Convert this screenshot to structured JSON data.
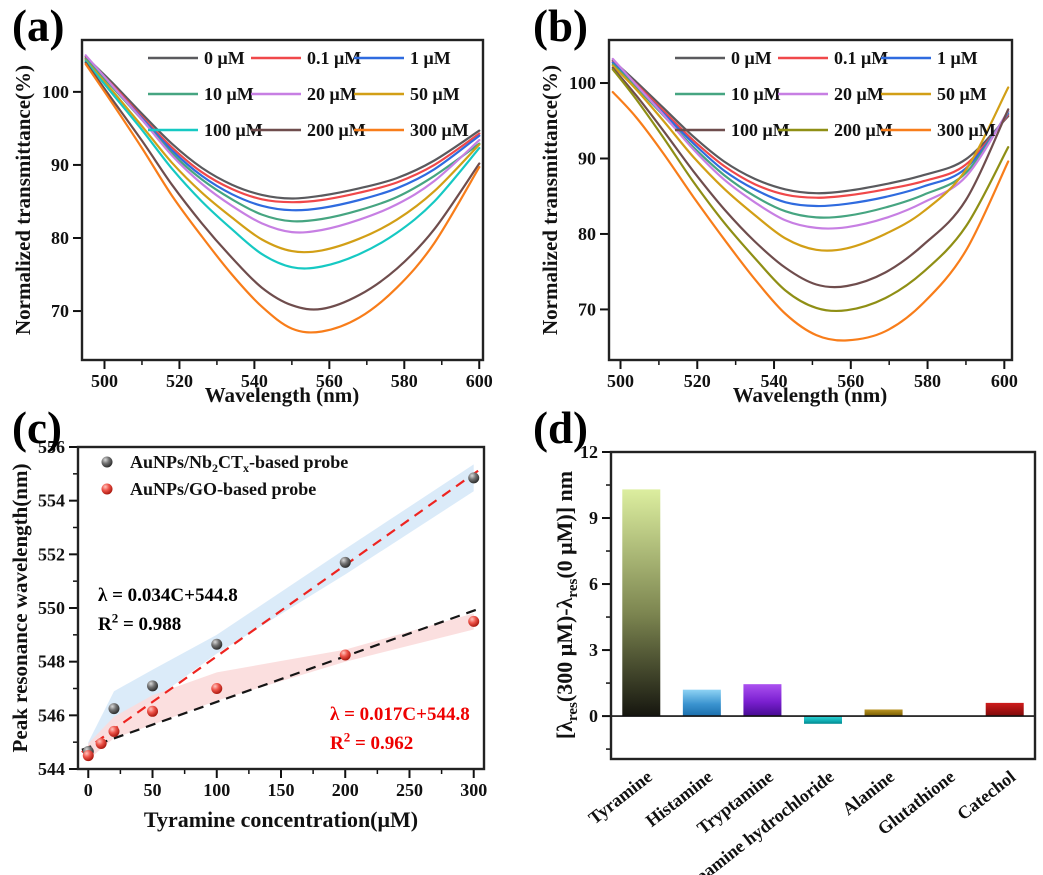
{
  "figure": {
    "background": "#ffffff"
  },
  "panels": {
    "a": {
      "letter": "(a)"
    },
    "b": {
      "letter": "(b)"
    },
    "c": {
      "letter": "(c)"
    },
    "d": {
      "letter": "(d)"
    }
  },
  "chart_data": [
    {
      "panel": "a",
      "type": "line",
      "xlabel": "Wavelength (nm)",
      "ylabel": "Normalized transmittance(%)",
      "xlim": [
        494,
        601
      ],
      "ylim": [
        63.3,
        107.1
      ],
      "xticks": [
        500,
        520,
        540,
        560,
        580,
        600
      ],
      "xminor": [
        510,
        530,
        550,
        570,
        590
      ],
      "yticks": [
        70,
        80,
        90,
        100
      ],
      "yminor": [],
      "x": [
        495,
        502,
        510,
        518,
        526,
        534,
        542,
        550,
        558,
        568,
        578,
        588,
        600
      ],
      "series": [
        {
          "name": "0 μM",
          "color": "#5a5a5e",
          "values": [
            104.8,
            101.3,
            97.0,
            92.9,
            89.6,
            87.3,
            85.9,
            85.4,
            85.8,
            86.8,
            88.2,
            90.6,
            94.7
          ]
        },
        {
          "name": "0.1 μM",
          "color": "#f0484a",
          "values": [
            104.6,
            101.0,
            96.6,
            92.4,
            89.0,
            86.7,
            85.3,
            84.9,
            85.2,
            86.2,
            87.6,
            90.0,
            94.3
          ]
        },
        {
          "name": "1 μM",
          "color": "#2f6bdf",
          "values": [
            104.5,
            100.8,
            96.4,
            92.0,
            88.5,
            86.0,
            84.4,
            83.8,
            84.1,
            85.2,
            86.8,
            89.4,
            94.0
          ]
        },
        {
          "name": "10 μM",
          "color": "#46a581",
          "values": [
            104.5,
            100.7,
            96.2,
            91.6,
            88.0,
            85.3,
            83.2,
            82.3,
            82.6,
            83.8,
            85.6,
            88.5,
            92.9
          ]
        },
        {
          "name": "20 μM",
          "color": "#c77fe3",
          "values": [
            105.0,
            100.9,
            96.2,
            91.3,
            87.4,
            84.4,
            82.0,
            80.8,
            81.1,
            82.5,
            84.6,
            87.8,
            93.4
          ]
        },
        {
          "name": "50 μM",
          "color": "#d29f16",
          "values": [
            104.3,
            100.2,
            95.3,
            90.3,
            86.2,
            82.8,
            79.8,
            78.2,
            78.3,
            79.9,
            82.5,
            86.4,
            92.8
          ]
        },
        {
          "name": "100 μM",
          "color": "#16c9c3",
          "values": [
            104.2,
            99.8,
            94.8,
            89.5,
            85.0,
            81.2,
            77.8,
            76.0,
            76.1,
            77.8,
            80.7,
            85.0,
            92.3
          ]
        },
        {
          "name": "200 μM",
          "color": "#6f4d4d",
          "values": [
            104.0,
            99.0,
            93.3,
            87.3,
            82.0,
            77.3,
            73.2,
            70.8,
            70.3,
            72.2,
            75.8,
            81.2,
            90.2
          ]
        },
        {
          "name": "300 μM",
          "color": "#f87d1a",
          "values": [
            103.8,
            98.5,
            92.3,
            85.8,
            80.2,
            75.0,
            70.6,
            67.6,
            67.2,
            69.1,
            73.2,
            79.3,
            89.7
          ]
        }
      ]
    },
    {
      "panel": "b",
      "type": "line",
      "xlabel": "Wavelength (nm)",
      "ylabel": "Normalized transmittance(%)",
      "xlim": [
        497,
        602
      ],
      "ylim": [
        63.3,
        105.7
      ],
      "xticks": [
        500,
        520,
        540,
        560,
        580,
        600
      ],
      "xminor": [
        510,
        530,
        550,
        570,
        590
      ],
      "yticks": [
        70,
        80,
        90,
        100
      ],
      "yminor": [],
      "x": [
        498,
        504,
        511,
        519,
        527,
        535,
        543,
        551,
        559,
        569,
        579,
        590,
        601
      ],
      "series": [
        {
          "name": "0 μM",
          "color": "#5a5a5e",
          "values": [
            103.0,
            100.2,
            96.8,
            92.9,
            89.6,
            87.3,
            85.9,
            85.4,
            85.7,
            86.6,
            87.8,
            89.9,
            95.6
          ]
        },
        {
          "name": "0.1 μM",
          "color": "#f0484a",
          "values": [
            102.8,
            99.9,
            96.4,
            92.4,
            89.0,
            86.6,
            85.2,
            84.8,
            85.1,
            85.9,
            87.0,
            89.2,
            95.8
          ]
        },
        {
          "name": "1 μM",
          "color": "#2f6bdf",
          "values": [
            102.7,
            99.7,
            96.1,
            92.0,
            88.4,
            85.9,
            84.2,
            83.7,
            84.0,
            84.9,
            86.3,
            88.7,
            96.0
          ]
        },
        {
          "name": "10 μM",
          "color": "#46a581",
          "values": [
            102.5,
            99.5,
            95.8,
            91.5,
            87.8,
            85.0,
            83.0,
            82.2,
            82.4,
            83.5,
            85.2,
            88.1,
            96.2
          ]
        },
        {
          "name": "20 μM",
          "color": "#c77fe3",
          "values": [
            103.2,
            99.8,
            95.9,
            91.2,
            87.2,
            84.2,
            81.8,
            80.8,
            80.9,
            82.1,
            84.2,
            87.6,
            96.3
          ]
        },
        {
          "name": "50 μM",
          "color": "#d29f16",
          "values": [
            102.3,
            99.2,
            95.1,
            90.2,
            86.0,
            82.5,
            79.4,
            77.9,
            78.1,
            80.0,
            83.0,
            88.5,
            99.4
          ]
        },
        {
          "name": "100 μM",
          "color": "#6f4d4d",
          "values": [
            102.0,
            98.4,
            93.8,
            88.3,
            83.3,
            79.0,
            75.5,
            73.3,
            73.1,
            74.9,
            78.6,
            84.5,
            96.5
          ]
        },
        {
          "name": "200 μM",
          "color": "#8f8f15",
          "values": [
            101.8,
            97.9,
            92.9,
            86.9,
            81.5,
            76.8,
            72.5,
            70.2,
            69.9,
            71.5,
            75.0,
            81.0,
            91.5
          ]
        },
        {
          "name": "300 μM",
          "color": "#f87d1a",
          "values": [
            98.8,
            95.5,
            90.8,
            84.9,
            79.3,
            74.0,
            69.4,
            66.6,
            65.9,
            67.1,
            70.9,
            77.8,
            89.6
          ]
        }
      ]
    },
    {
      "panel": "c",
      "type": "scatter",
      "xlabel": "Tyramine concentration(μM)",
      "ylabel": "Peak resonance wavelength(nm)",
      "xlim": [
        -8,
        308
      ],
      "ylim": [
        544,
        556
      ],
      "xticks": [
        0,
        50,
        100,
        150,
        200,
        250,
        300
      ],
      "xminor": [
        25,
        75,
        125,
        175,
        225,
        275
      ],
      "yticks": [
        544,
        546,
        548,
        550,
        552,
        554,
        556
      ],
      "yminor": [
        545,
        547,
        549,
        551,
        553,
        555
      ],
      "series": [
        {
          "name": "AuNPs/Nb2CTx-based probe",
          "name_parts": [
            {
              "t": "AuNPs/Nb"
            },
            {
              "t": "2",
              "sub": true
            },
            {
              "t": "CT"
            },
            {
              "t": "x",
              "sub": true
            },
            {
              "t": "-based probe"
            }
          ],
          "marker_color": "#4d4d4d",
          "points": [
            [
              0,
              544.65
            ],
            [
              20,
              546.25
            ],
            [
              50,
              547.1
            ],
            [
              100,
              548.65
            ],
            [
              200,
              551.7
            ],
            [
              300,
              554.85
            ]
          ],
          "band": {
            "color": "#d7e9f8",
            "upper": [
              [
                0,
                545.0
              ],
              [
                20,
                546.9
              ],
              [
                50,
                547.7
              ],
              [
                100,
                549.0
              ],
              [
                200,
                552.2
              ],
              [
                300,
                555.35
              ]
            ],
            "lower": [
              [
                0,
                544.45
              ],
              [
                20,
                545.65
              ],
              [
                50,
                546.55
              ],
              [
                100,
                548.3
              ],
              [
                200,
                551.25
              ],
              [
                300,
                554.35
              ]
            ]
          },
          "fit": {
            "slope": 0.034,
            "intercept": 544.8,
            "line_color": "#ee2420",
            "eq_parts": [
              {
                "t": "λ = 0.034C+544.8"
              }
            ],
            "r2_parts": [
              {
                "t": "R"
              },
              {
                "t": "2",
                "sup": true
              },
              {
                "t": " = 0.988"
              }
            ],
            "text_color": "#000000"
          }
        },
        {
          "name": "AuNPs/GO-based probe",
          "name_parts": [
            {
              "t": "AuNPs/GO-based probe"
            }
          ],
          "marker_color": "#e8433c",
          "points": [
            [
              0,
              544.5
            ],
            [
              10,
              544.95
            ],
            [
              20,
              545.4
            ],
            [
              50,
              546.15
            ],
            [
              100,
              547.0
            ],
            [
              200,
              548.25
            ],
            [
              300,
              549.5
            ]
          ],
          "band": {
            "color": "#fbdcdc",
            "upper": [
              [
                0,
                544.95
              ],
              [
                20,
                545.95
              ],
              [
                50,
                546.75
              ],
              [
                100,
                547.6
              ],
              [
                200,
                548.45
              ],
              [
                300,
                549.8
              ]
            ],
            "lower": [
              [
                0,
                544.35
              ],
              [
                20,
                545.15
              ],
              [
                50,
                545.65
              ],
              [
                100,
                546.55
              ],
              [
                200,
                548.0
              ],
              [
                300,
                549.2
              ]
            ]
          },
          "fit": {
            "slope": 0.017,
            "intercept": 544.8,
            "line_color": "#151515",
            "eq_parts": [
              {
                "t": "λ = 0.017C+544.8"
              }
            ],
            "r2_parts": [
              {
                "t": "R"
              },
              {
                "t": "2",
                "sup": true
              },
              {
                "t": " = 0.962"
              }
            ],
            "text_color": "#ee0000"
          }
        }
      ]
    },
    {
      "panel": "d",
      "type": "bar",
      "ylabel": "[λres(300 μM)-λres(0 μM)] nm",
      "ylabel_parts": [
        {
          "t": "[λ"
        },
        {
          "t": "res",
          "sub": true
        },
        {
          "t": "(300 μM)-λ"
        },
        {
          "t": "res",
          "sub": true
        },
        {
          "t": "(0 μM)] nm"
        }
      ],
      "categories": [
        "Tyramine",
        "Histamine",
        "Tryptamine",
        "Dopamine hydrochloride",
        "Alanine",
        "Glutathione",
        "Catechol"
      ],
      "values": [
        10.3,
        1.2,
        1.45,
        -0.35,
        0.3,
        0,
        0.6
      ],
      "ylim": [
        -1.95,
        12
      ],
      "yticks": [
        0,
        3,
        6,
        9,
        12
      ],
      "yminor": [
        -1.5,
        1.5,
        4.5,
        7.5,
        10.5
      ],
      "bar_gradients": [
        [
          "#dcee9f",
          "#7c8550",
          "#16160f"
        ],
        [
          "#8ed3f4",
          "#3a93cf",
          "#1b6fad"
        ],
        [
          "#ab51f0",
          "#7a1fd0",
          "#470c93"
        ],
        [
          "#2fd6d6",
          "#14b2b8",
          "#00898f"
        ],
        [
          "#bb9425",
          "#96760f",
          "#6f5707"
        ],
        [
          "#999999",
          "#777777",
          "#555555"
        ],
        [
          "#cf1d1d",
          "#a31111",
          "#7d0a0a"
        ]
      ]
    }
  ]
}
